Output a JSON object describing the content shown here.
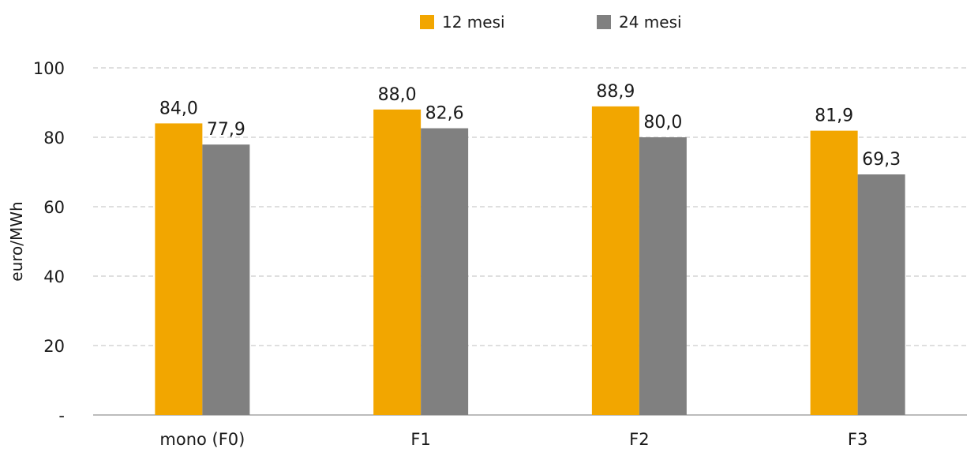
{
  "chart_data": {
    "type": "bar",
    "title": "",
    "xlabel": "",
    "ylabel": "euro/MWh",
    "categories": [
      "mono (F0)",
      "F1",
      "F2",
      "F3"
    ],
    "series": [
      {
        "name": "12 mesi",
        "color": "#F2A600",
        "values": [
          84.0,
          88.0,
          88.9,
          81.9
        ],
        "labels": [
          "84,0",
          "88,0",
          "88,9",
          "81,9"
        ]
      },
      {
        "name": "24 mesi",
        "color": "#808080",
        "values": [
          77.9,
          82.6,
          80.0,
          69.3
        ],
        "labels": [
          "77,9",
          "82,6",
          "80,0",
          "69,3"
        ]
      }
    ],
    "ylim": [
      0,
      100
    ],
    "yticks": [
      0,
      20,
      40,
      60,
      80,
      100
    ],
    "ytick_labels": [
      "-",
      "20",
      "40",
      "60",
      "80",
      "100"
    ],
    "grid": true,
    "legend": "top-center"
  }
}
